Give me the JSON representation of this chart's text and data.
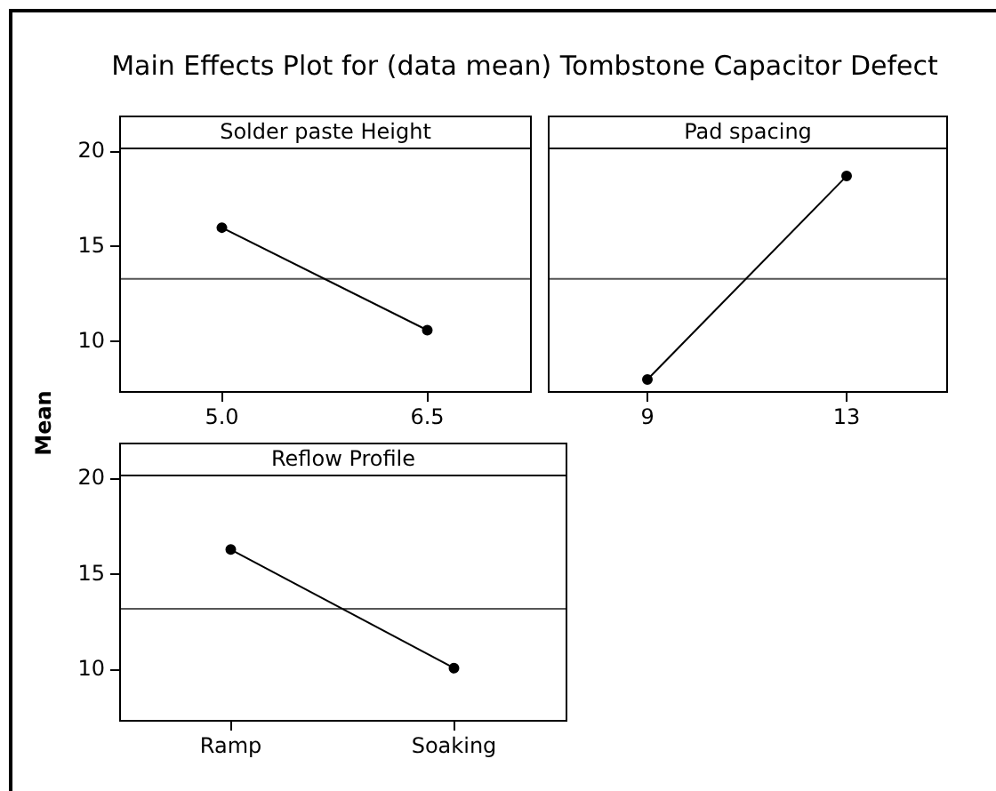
{
  "chart_data": [
    {
      "type": "line",
      "title": "Solder paste Height",
      "ylabel": "Mean",
      "annotations": [
        "Main Effects Plot for (data mean) Tombstone Capacitor Defect"
      ],
      "categories": [
        "5.0",
        "6.5"
      ],
      "series": [
        {
          "color": "#000000",
          "values": [
            16.0,
            10.6
          ]
        }
      ],
      "ylim": [
        7.3,
        20.2
      ],
      "yticks": [
        10,
        15,
        20
      ],
      "marker": "circle",
      "ref_lines": [
        {
          "axis": "y",
          "value": 13.3
        }
      ]
    },
    {
      "type": "line",
      "title": "Pad spacing",
      "categories": [
        "9",
        "13"
      ],
      "series": [
        {
          "color": "#000000",
          "values": [
            8.0,
            18.7
          ]
        }
      ],
      "ylim": [
        7.3,
        20.2
      ],
      "tick_labels": "x",
      "marker": "circle",
      "ref_lines": [
        {
          "axis": "y",
          "value": 13.3
        }
      ]
    },
    {
      "type": "line",
      "title": "Reflow Profile",
      "categories": [
        "Ramp",
        "Soaking"
      ],
      "series": [
        {
          "color": "#000000",
          "values": [
            16.3,
            10.1
          ]
        }
      ],
      "ylim": [
        7.3,
        20.2
      ],
      "yticks": [
        10,
        15,
        20
      ],
      "marker": "circle",
      "ref_lines": [
        {
          "axis": "y",
          "value": 13.2
        }
      ]
    }
  ]
}
